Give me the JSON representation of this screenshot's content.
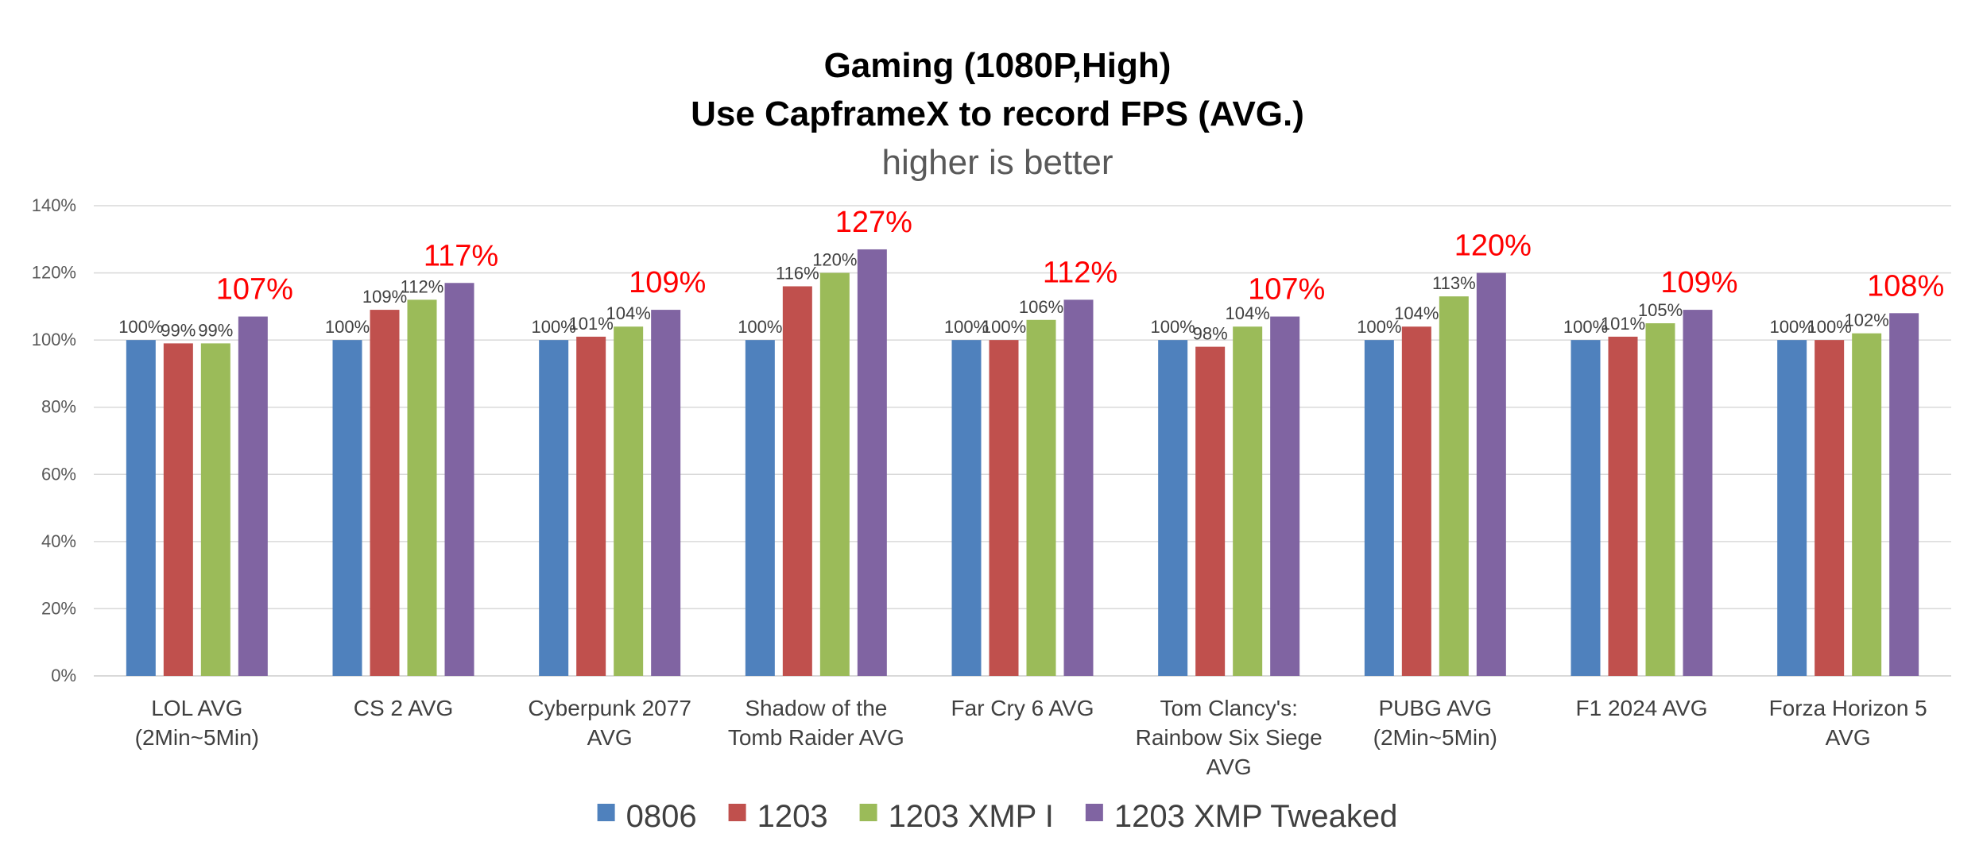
{
  "chart_data": {
    "type": "bar",
    "title_line1": "Gaming (1080P,High)",
    "title_line2": "Use CapframeX to record FPS (AVG.)",
    "subtitle": "higher is better",
    "xlabel": "",
    "ylabel": "",
    "ylim": [
      0,
      140
    ],
    "y_ticks": [
      "0%",
      "20%",
      "40%",
      "60%",
      "80%",
      "100%",
      "120%",
      "140%"
    ],
    "grid": true,
    "legend_position": "bottom",
    "categories": [
      [
        "LOL AVG",
        "(2Min~5Min)"
      ],
      [
        "CS 2 AVG"
      ],
      [
        "Cyberpunk 2077",
        "AVG"
      ],
      [
        "Shadow of the",
        "Tomb Raider AVG"
      ],
      [
        "Far Cry 6 AVG"
      ],
      [
        "Tom Clancy's:",
        "Rainbow Six Siege",
        "AVG"
      ],
      [
        "PUBG AVG",
        "(2Min~5Min)"
      ],
      [
        "F1 2024 AVG"
      ],
      [
        "Forza Horizon 5",
        "AVG"
      ]
    ],
    "series": [
      {
        "name": "0806",
        "color": "#4f81bd",
        "values": [
          100,
          100,
          100,
          100,
          100,
          100,
          100,
          100,
          100
        ],
        "labels": [
          "100%",
          "100%",
          "100%",
          "100%",
          "100%",
          "100%",
          "100%",
          "100%",
          "100%"
        ]
      },
      {
        "name": "1203",
        "color": "#c0504d",
        "values": [
          99,
          109,
          101,
          116,
          100,
          98,
          104,
          101,
          100
        ],
        "labels": [
          "99%",
          "109%",
          "101%",
          "116%",
          "100%",
          "98%",
          "104%",
          "101%",
          "100%"
        ]
      },
      {
        "name": "1203 XMP I",
        "color": "#9bbb59",
        "values": [
          99,
          112,
          104,
          120,
          106,
          104,
          113,
          105,
          102
        ],
        "labels": [
          "99%",
          "112%",
          "104%",
          "120%",
          "106%",
          "104%",
          "113%",
          "105%",
          "102%"
        ]
      },
      {
        "name": "1203 XMP Tweaked",
        "color": "#8064a2",
        "values": [
          107,
          117,
          109,
          127,
          112,
          107,
          120,
          109,
          108
        ],
        "labels": [
          "107%",
          "117%",
          "109%",
          "127%",
          "112%",
          "107%",
          "120%",
          "109%",
          "108%"
        ]
      }
    ],
    "highlight_label_color": "#ff0000",
    "gridline_color": "#d9d9d9",
    "axis_line_color": "#d9d9d9"
  }
}
